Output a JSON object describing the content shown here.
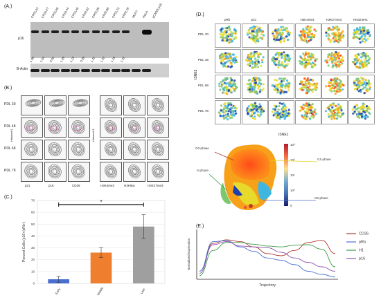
{
  "panelA": {
    "label": "(A.)",
    "lanes": [
      "CPDL23",
      "CPDL27",
      "CPDL38",
      "CPDL44",
      "CPDL48",
      "CPDL52",
      "CPDL56",
      "CPDL68",
      "CPDL72",
      "CPDL78",
      "MCF7",
      "HeLA",
      "pCMV6 p15"
    ],
    "p16_label": "p16",
    "actin_label": "B-Actin",
    "quant": [
      "1.00",
      "1.04",
      "0.92",
      "1.09",
      "1.15",
      "0.99",
      "1.42",
      "1.32",
      "1.16",
      "1.22"
    ]
  },
  "panelB": {
    "label": "(B.)",
    "rows": [
      "PDL 30",
      "PDL 48",
      "PDL 68",
      "PDL 78"
    ],
    "left_cols": [
      "p21",
      "p16",
      "CD26"
    ],
    "right_cols": [
      "H3K4me3",
      "H3K9ac",
      "H3K27me3"
    ],
    "yaxis": "HistoneH1"
  },
  "panelC": {
    "label": "(C.)",
    "significance": "*",
    "chart_data": {
      "type": "bar",
      "categories": [
        "Early",
        "Middle",
        "Late"
      ],
      "values": [
        3.5,
        26,
        48
      ],
      "errors": [
        2.5,
        4,
        10
      ],
      "colors": [
        "#4a6fd0",
        "#ef7f2f",
        "#9f9f9f"
      ],
      "ylabel": "Percent Cells (p16+/pRb-)",
      "xlabel": "",
      "ylim": [
        0,
        70
      ],
      "yticks": [
        0,
        10,
        20,
        30,
        40,
        50,
        60,
        70
      ]
    }
  },
  "panelD": {
    "label": "(D.)",
    "cols": [
      "pRb",
      "p21",
      "p16",
      "H3K4me3",
      "H3K27me3",
      "HistoneH1"
    ],
    "rows": [
      "PDL 30",
      "PDL 48",
      "PDL 68",
      "PDL 78"
    ],
    "xlabel": "tSNE1",
    "ylabel": "tSNE2",
    "phases": [
      "G0-phase",
      "G1-phase",
      "S-phase",
      "G2-phase"
    ],
    "colorbar_ticks": [
      "10³",
      "10²",
      "10¹",
      "10⁰",
      "0"
    ]
  },
  "panelE": {
    "label": "(E.)",
    "ylabel": "Normalized Expression",
    "xlabel": "Trajectory",
    "chart_data": {
      "type": "line",
      "x": [
        0,
        1,
        2,
        3,
        4,
        5,
        6,
        7,
        8,
        9,
        10
      ],
      "series": [
        {
          "name": "CD26",
          "color": "#b03a2e",
          "values": [
            0.15,
            0.78,
            0.86,
            0.82,
            0.7,
            0.55,
            0.5,
            0.62,
            0.8,
            0.85,
            0.55
          ]
        },
        {
          "name": "pRb",
          "color": "#4a6fd0",
          "values": [
            0.15,
            0.82,
            0.84,
            0.7,
            0.6,
            0.45,
            0.4,
            0.3,
            0.15,
            0.08,
            0.02
          ]
        },
        {
          "name": "H1",
          "color": "#3a9a40",
          "values": [
            0.05,
            0.62,
            0.8,
            0.8,
            0.76,
            0.72,
            0.7,
            0.74,
            0.75,
            0.65,
            0.25
          ]
        },
        {
          "name": "p16",
          "color": "#8a4fb0",
          "values": [
            0.1,
            0.75,
            0.82,
            0.72,
            0.7,
            0.68,
            0.58,
            0.45,
            0.35,
            0.25,
            0.15
          ]
        }
      ]
    }
  }
}
